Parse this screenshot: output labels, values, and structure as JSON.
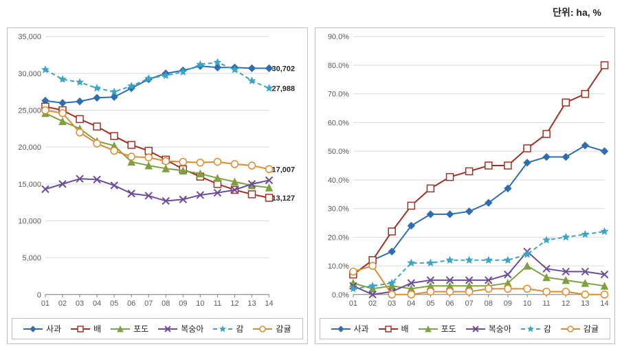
{
  "unit_label": "단위: ha, %",
  "categories": [
    "01",
    "02",
    "03",
    "04",
    "05",
    "06",
    "07",
    "08",
    "09",
    "10",
    "11",
    "12",
    "13",
    "14"
  ],
  "series": [
    {
      "key": "apple",
      "label": "사과",
      "color": "#2f6db3",
      "marker": "diamond",
      "dash": "",
      "marker_size": 5
    },
    {
      "key": "pear",
      "label": "배",
      "color": "#a03020",
      "marker": "square-open",
      "dash": "",
      "marker_size": 5
    },
    {
      "key": "grape",
      "label": "포도",
      "color": "#7fa040",
      "marker": "triangle",
      "dash": "",
      "marker_size": 5
    },
    {
      "key": "peach",
      "label": "복숭아",
      "color": "#6b4d99",
      "marker": "x",
      "dash": "",
      "marker_size": 5
    },
    {
      "key": "persimmon",
      "label": "감",
      "color": "#3aa5c4",
      "marker": "star",
      "dash": "6,4",
      "marker_size": 5
    },
    {
      "key": "citrus",
      "label": "감귤",
      "color": "#e08a2e",
      "marker": "circle-open",
      "dash": "",
      "marker_size": 5
    }
  ],
  "chart_left": {
    "type": "line",
    "ylim": [
      0,
      35000
    ],
    "ytick_step": 5000,
    "ytick_format": "#,##0",
    "xtick_step": 1,
    "background_color": "#ffffff",
    "grid_color": "#d9d9d9",
    "line_width": 2,
    "label_fontsize": 11,
    "end_labels": [
      {
        "series": "apple",
        "value": 30702,
        "text": "30,702"
      },
      {
        "series": "persimmon",
        "value": 27988,
        "text": "27,988"
      },
      {
        "series": "citrus",
        "value": 17007,
        "text": "17,007"
      },
      {
        "series": "pear",
        "value": 13127,
        "text": "13,127"
      }
    ],
    "values": {
      "apple": [
        26300,
        26000,
        26200,
        26700,
        26800,
        28000,
        29200,
        30000,
        30400,
        31000,
        30800,
        30800,
        30700,
        30702
      ],
      "pear": [
        25500,
        25000,
        23800,
        22800,
        21500,
        20300,
        19500,
        18300,
        17000,
        16000,
        15000,
        14200,
        13600,
        13127
      ],
      "grape": [
        24600,
        23500,
        22500,
        20800,
        20200,
        18000,
        17500,
        17100,
        16800,
        16400,
        15800,
        15300,
        14800,
        14500
      ],
      "peach": [
        14300,
        15000,
        15700,
        15600,
        14800,
        13700,
        13400,
        12700,
        12900,
        13500,
        13800,
        14200,
        15000,
        15500
      ],
      "persimmon": [
        30500,
        29200,
        28800,
        28000,
        27500,
        28300,
        29300,
        29700,
        30200,
        31200,
        31500,
        30500,
        29000,
        27988
      ],
      "citrus": [
        25000,
        24600,
        22000,
        20500,
        19500,
        18700,
        18600,
        18100,
        18000,
        17900,
        18000,
        17700,
        17500,
        17007
      ]
    }
  },
  "chart_right": {
    "type": "line",
    "ylim": [
      0,
      90
    ],
    "ytick_step": 10,
    "ytick_format": "0.0%",
    "xtick_step": 1,
    "background_color": "#ffffff",
    "grid_color": "#d9d9d9",
    "line_width": 2,
    "label_fontsize": 11,
    "values": {
      "apple": [
        7,
        12,
        15,
        24,
        28,
        28,
        29,
        32,
        37,
        46,
        48,
        48,
        52,
        50
      ],
      "pear": [
        7,
        12,
        22,
        31,
        37,
        41,
        43,
        45,
        45,
        51,
        56,
        67,
        70,
        80
      ],
      "grape": [
        4,
        2,
        3,
        2,
        3,
        3,
        3,
        3,
        4,
        10,
        6,
        5,
        4,
        3
      ],
      "peach": [
        3,
        0,
        1,
        4,
        5,
        5,
        5,
        5,
        7,
        15,
        9,
        8,
        8,
        7
      ],
      "persimmon": [
        2,
        3,
        4,
        11,
        11,
        12,
        12,
        12,
        12,
        14,
        19,
        20,
        21,
        22
      ],
      "citrus": [
        8,
        10,
        0,
        0,
        1,
        1,
        1,
        2,
        2,
        2,
        1,
        1,
        0,
        0
      ]
    }
  }
}
